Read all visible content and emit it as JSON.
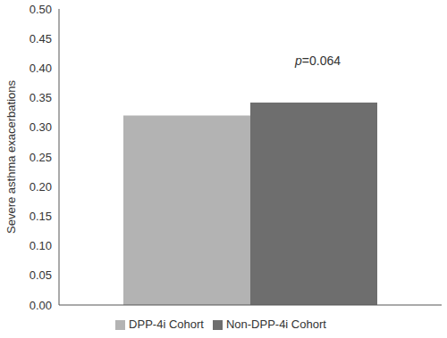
{
  "chart_data": {
    "type": "bar",
    "y_label": "Severe asthma exacerbations",
    "annotation": "p=0.064",
    "categories": [
      null
    ],
    "series": [
      {
        "name": "DPP-4i Cohort",
        "color": "#b3b3b3",
        "values": [
          0.32
        ]
      },
      {
        "name": "Non-DPP-4i Cohort",
        "color": "#6e6e6e",
        "values": [
          0.342
        ]
      }
    ],
    "ylim": [
      0,
      0.5
    ],
    "yticks": [
      {
        "value": 0,
        "label": "0.00"
      },
      {
        "value": 0.05,
        "label": "0.05"
      },
      {
        "value": 0.1,
        "label": "0.10"
      },
      {
        "value": 0.15,
        "label": "0.15"
      },
      {
        "value": 0.2,
        "label": "0.20"
      },
      {
        "value": 0.25,
        "label": "0.25"
      },
      {
        "value": 0.3,
        "label": "0.30"
      },
      {
        "value": 0.35,
        "label": "0.35"
      },
      {
        "value": 0.4,
        "label": "0.40"
      },
      {
        "value": 0.45,
        "label": "0.45"
      },
      {
        "value": 0.5,
        "label": "0.50"
      }
    ],
    "grid": false,
    "legend": "bottom"
  }
}
